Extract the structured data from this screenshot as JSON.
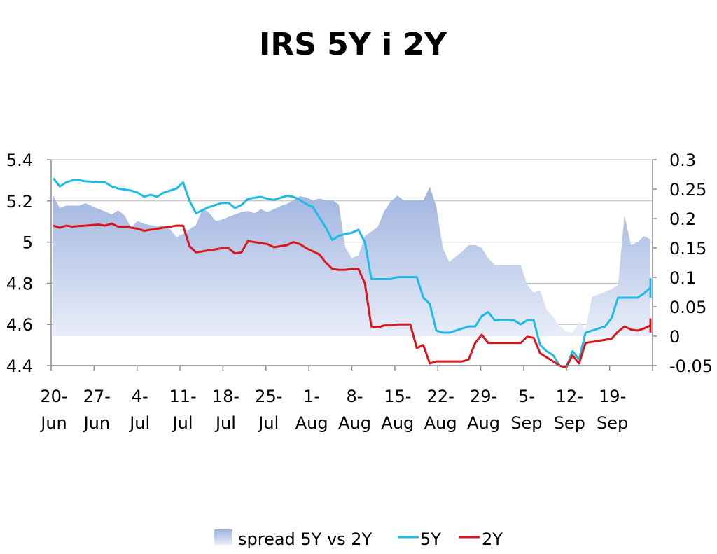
{
  "chart_data": {
    "type": "line",
    "title": "IRS 5Y i 2Y",
    "x_labels": [
      {
        "day": "20-",
        "month": "Jun"
      },
      {
        "day": "27-",
        "month": "Jun"
      },
      {
        "day": "4-",
        "month": "Jul"
      },
      {
        "day": "11-",
        "month": "Jul"
      },
      {
        "day": "18-",
        "month": "Jul"
      },
      {
        "day": "25-",
        "month": "Jul"
      },
      {
        "day": "1-",
        "month": "Aug"
      },
      {
        "day": "8-",
        "month": "Aug"
      },
      {
        "day": "15-",
        "month": "Aug"
      },
      {
        "day": "22-",
        "month": "Aug"
      },
      {
        "day": "29-",
        "month": "Aug"
      },
      {
        "day": "5-",
        "month": "Sep"
      },
      {
        "day": "12-",
        "month": "Sep"
      },
      {
        "day": "19-",
        "month": "Sep"
      }
    ],
    "x_range": [
      0,
      92
    ],
    "y_left": {
      "min": 4.4,
      "max": 5.4,
      "ticks": [
        "5.4",
        "5.2",
        "5",
        "4.8",
        "4.6",
        "4.4"
      ]
    },
    "y_right": {
      "min": -0.05,
      "max": 0.3,
      "ticks": [
        "0.3",
        "0.25",
        "0.2",
        "0.15",
        "0.1",
        "0.05",
        "0",
        "-0.05"
      ]
    },
    "grid": true,
    "legend_position": "bottom",
    "colors": {
      "spread_top": "#9eb3df",
      "spread_bottom": "#e8edf8",
      "five_y": "#1ebbe6",
      "two_y": "#d8161c",
      "grid": "#b7b7b7",
      "axis": "#8c8c8c"
    },
    "series": [
      {
        "name": "spread 5Y vs 2Y",
        "axis": "right",
        "style": "area",
        "points": [
          [
            0,
            0.239
          ],
          [
            1,
            0.218
          ],
          [
            2,
            0.222
          ],
          [
            3,
            0.222
          ],
          [
            4,
            0.222
          ],
          [
            5,
            0.226
          ],
          [
            6,
            0.221
          ],
          [
            7,
            0.216
          ],
          [
            8,
            0.212
          ],
          [
            9,
            0.207
          ],
          [
            10,
            0.214
          ],
          [
            11,
            0.205
          ],
          [
            12,
            0.185
          ],
          [
            13,
            0.196
          ],
          [
            14,
            0.191
          ],
          [
            15,
            0.189
          ],
          [
            16,
            0.187
          ],
          [
            17,
            0.187
          ],
          [
            18,
            0.182
          ],
          [
            19,
            0.168
          ],
          [
            20,
            0.174
          ],
          [
            21,
            0.182
          ],
          [
            22,
            0.189
          ],
          [
            23,
            0.217
          ],
          [
            24,
            0.21
          ],
          [
            25,
            0.196
          ],
          [
            26,
            0.198
          ],
          [
            27,
            0.203
          ],
          [
            28,
            0.207
          ],
          [
            29,
            0.211
          ],
          [
            30,
            0.213
          ],
          [
            31,
            0.209
          ],
          [
            32,
            0.216
          ],
          [
            33,
            0.211
          ],
          [
            34,
            0.216
          ],
          [
            35,
            0.221
          ],
          [
            36,
            0.225
          ],
          [
            37,
            0.231
          ],
          [
            38,
            0.238
          ],
          [
            39,
            0.236
          ],
          [
            40,
            0.231
          ],
          [
            41,
            0.234
          ],
          [
            42,
            0.231
          ],
          [
            43,
            0.231
          ],
          [
            44,
            0.224
          ],
          [
            45,
            0.15
          ],
          [
            46,
            0.133
          ],
          [
            47,
            0.137
          ],
          [
            48,
            0.17
          ],
          [
            49,
            0.178
          ],
          [
            50,
            0.186
          ],
          [
            51,
            0.213
          ],
          [
            52,
            0.229
          ],
          [
            53,
            0.239
          ],
          [
            54,
            0.231
          ],
          [
            55,
            0.231
          ],
          [
            56,
            0.231
          ],
          [
            57,
            0.231
          ],
          [
            58,
            0.254
          ],
          [
            59,
            0.221
          ],
          [
            60,
            0.15
          ],
          [
            61,
            0.126
          ],
          [
            62,
            0.135
          ],
          [
            63,
            0.144
          ],
          [
            64,
            0.155
          ],
          [
            65,
            0.155
          ],
          [
            66,
            0.15
          ],
          [
            67,
            0.133
          ],
          [
            68,
            0.121
          ],
          [
            69,
            0.121
          ],
          [
            70,
            0.121
          ],
          [
            71,
            0.121
          ],
          [
            72,
            0.121
          ],
          [
            73,
            0.088
          ],
          [
            74,
            0.074
          ],
          [
            75,
            0.078
          ],
          [
            76,
            0.045
          ],
          [
            77,
            0.033
          ],
          [
            78,
            0.017
          ],
          [
            79,
            0.008
          ],
          [
            80,
            0.006
          ],
          [
            81,
            0.024
          ],
          [
            82,
            0.012
          ],
          [
            83,
            0.067
          ],
          [
            84,
            0.071
          ],
          [
            85,
            0.075
          ],
          [
            86,
            0.08
          ],
          [
            87,
            0.087
          ],
          [
            88,
            0.205
          ],
          [
            89,
            0.155
          ],
          [
            90,
            0.16
          ],
          [
            91,
            0.17
          ],
          [
            92,
            0.165
          ],
          [
            93,
            0.158
          ],
          [
            94,
            0.152
          ],
          [
            95,
            0.168
          ]
        ]
      },
      {
        "name": "5Y",
        "axis": "left",
        "style": "line",
        "points": [
          [
            0,
            5.31
          ],
          [
            1,
            5.27
          ],
          [
            2,
            5.29
          ],
          [
            3,
            5.3
          ],
          [
            4,
            5.3
          ],
          [
            5,
            5.295
          ],
          [
            6,
            5.293
          ],
          [
            7,
            5.29
          ],
          [
            8,
            5.29
          ],
          [
            9,
            5.27
          ],
          [
            10,
            5.26
          ],
          [
            11,
            5.255
          ],
          [
            12,
            5.25
          ],
          [
            13,
            5.24
          ],
          [
            14,
            5.22
          ],
          [
            15,
            5.23
          ],
          [
            16,
            5.22
          ],
          [
            17,
            5.24
          ],
          [
            18,
            5.25
          ],
          [
            19,
            5.26
          ],
          [
            20,
            5.29
          ],
          [
            21,
            5.2
          ],
          [
            22,
            5.14
          ],
          [
            23,
            5.155
          ],
          [
            24,
            5.17
          ],
          [
            25,
            5.18
          ],
          [
            26,
            5.19
          ],
          [
            27,
            5.19
          ],
          [
            28,
            5.165
          ],
          [
            29,
            5.18
          ],
          [
            30,
            5.21
          ],
          [
            31,
            5.215
          ],
          [
            32,
            5.22
          ],
          [
            33,
            5.21
          ],
          [
            34,
            5.205
          ],
          [
            35,
            5.215
          ],
          [
            36,
            5.225
          ],
          [
            37,
            5.22
          ],
          [
            38,
            5.205
          ],
          [
            39,
            5.185
          ],
          [
            40,
            5.17
          ],
          [
            41,
            5.12
          ],
          [
            42,
            5.07
          ],
          [
            43,
            5.01
          ],
          [
            44,
            5.03
          ],
          [
            45,
            5.04
          ],
          [
            46,
            5.045
          ],
          [
            47,
            5.06
          ],
          [
            48,
            5.0
          ],
          [
            49,
            4.82
          ],
          [
            50,
            4.82
          ],
          [
            51,
            4.82
          ],
          [
            52,
            4.82
          ],
          [
            53,
            4.83
          ],
          [
            54,
            4.83
          ],
          [
            55,
            4.83
          ],
          [
            56,
            4.83
          ],
          [
            57,
            4.73
          ],
          [
            58,
            4.7
          ],
          [
            59,
            4.57
          ],
          [
            60,
            4.56
          ],
          [
            61,
            4.56
          ],
          [
            62,
            4.57
          ],
          [
            63,
            4.58
          ],
          [
            64,
            4.59
          ],
          [
            65,
            4.59
          ],
          [
            66,
            4.64
          ],
          [
            67,
            4.66
          ],
          [
            68,
            4.62
          ],
          [
            69,
            4.62
          ],
          [
            70,
            4.62
          ],
          [
            71,
            4.62
          ],
          [
            72,
            4.6
          ],
          [
            73,
            4.62
          ],
          [
            74,
            4.62
          ],
          [
            75,
            4.5
          ],
          [
            76,
            4.47
          ],
          [
            77,
            4.45
          ],
          [
            78,
            4.4
          ],
          [
            79,
            4.39
          ],
          [
            80,
            4.47
          ],
          [
            81,
            4.43
          ],
          [
            82,
            4.56
          ],
          [
            83,
            4.57
          ],
          [
            84,
            4.58
          ],
          [
            85,
            4.59
          ],
          [
            86,
            4.63
          ],
          [
            87,
            4.73
          ],
          [
            88,
            4.73
          ],
          [
            89,
            4.73
          ],
          [
            90,
            4.73
          ],
          [
            91,
            4.75
          ],
          [
            92,
            4.78
          ],
          [
            93,
            4.8
          ],
          [
            94,
            4.82
          ],
          [
            95,
            4.73
          ]
        ]
      },
      {
        "name": "2Y",
        "axis": "left",
        "style": "line",
        "points": [
          [
            0,
            5.08
          ],
          [
            1,
            5.07
          ],
          [
            2,
            5.08
          ],
          [
            3,
            5.075
          ],
          [
            4,
            5.078
          ],
          [
            5,
            5.08
          ],
          [
            6,
            5.083
          ],
          [
            7,
            5.085
          ],
          [
            8,
            5.08
          ],
          [
            9,
            5.09
          ],
          [
            10,
            5.075
          ],
          [
            11,
            5.075
          ],
          [
            12,
            5.07
          ],
          [
            13,
            5.065
          ],
          [
            14,
            5.055
          ],
          [
            15,
            5.06
          ],
          [
            16,
            5.065
          ],
          [
            17,
            5.07
          ],
          [
            18,
            5.075
          ],
          [
            19,
            5.08
          ],
          [
            20,
            5.08
          ],
          [
            21,
            4.98
          ],
          [
            22,
            4.95
          ],
          [
            23,
            4.955
          ],
          [
            24,
            4.96
          ],
          [
            25,
            4.965
          ],
          [
            26,
            4.97
          ],
          [
            27,
            4.97
          ],
          [
            28,
            4.945
          ],
          [
            29,
            4.95
          ],
          [
            30,
            5.005
          ],
          [
            31,
            5.0
          ],
          [
            32,
            4.995
          ],
          [
            33,
            4.99
          ],
          [
            34,
            4.975
          ],
          [
            35,
            4.98
          ],
          [
            36,
            4.985
          ],
          [
            37,
            5.0
          ],
          [
            38,
            4.99
          ],
          [
            39,
            4.97
          ],
          [
            40,
            4.955
          ],
          [
            41,
            4.94
          ],
          [
            42,
            4.9
          ],
          [
            43,
            4.87
          ],
          [
            44,
            4.865
          ],
          [
            45,
            4.865
          ],
          [
            46,
            4.87
          ],
          [
            47,
            4.87
          ],
          [
            48,
            4.8
          ],
          [
            49,
            4.59
          ],
          [
            50,
            4.585
          ],
          [
            51,
            4.595
          ],
          [
            52,
            4.595
          ],
          [
            53,
            4.6
          ],
          [
            54,
            4.6
          ],
          [
            55,
            4.6
          ],
          [
            56,
            4.485
          ],
          [
            57,
            4.5
          ],
          [
            58,
            4.41
          ],
          [
            59,
            4.42
          ],
          [
            60,
            4.42
          ],
          [
            61,
            4.42
          ],
          [
            62,
            4.42
          ],
          [
            63,
            4.42
          ],
          [
            64,
            4.43
          ],
          [
            65,
            4.51
          ],
          [
            66,
            4.55
          ],
          [
            67,
            4.51
          ],
          [
            68,
            4.51
          ],
          [
            69,
            4.51
          ],
          [
            70,
            4.51
          ],
          [
            71,
            4.51
          ],
          [
            72,
            4.51
          ],
          [
            73,
            4.54
          ],
          [
            74,
            4.535
          ],
          [
            75,
            4.46
          ],
          [
            76,
            4.44
          ],
          [
            77,
            4.42
          ],
          [
            78,
            4.4
          ],
          [
            79,
            4.39
          ],
          [
            80,
            4.45
          ],
          [
            81,
            4.41
          ],
          [
            82,
            4.51
          ],
          [
            83,
            4.515
          ],
          [
            84,
            4.52
          ],
          [
            85,
            4.525
          ],
          [
            86,
            4.53
          ],
          [
            87,
            4.565
          ],
          [
            88,
            4.59
          ],
          [
            89,
            4.575
          ],
          [
            90,
            4.57
          ],
          [
            91,
            4.58
          ],
          [
            92,
            4.595
          ],
          [
            93,
            4.61
          ],
          [
            94,
            4.625
          ],
          [
            95,
            4.56
          ]
        ]
      }
    ]
  }
}
